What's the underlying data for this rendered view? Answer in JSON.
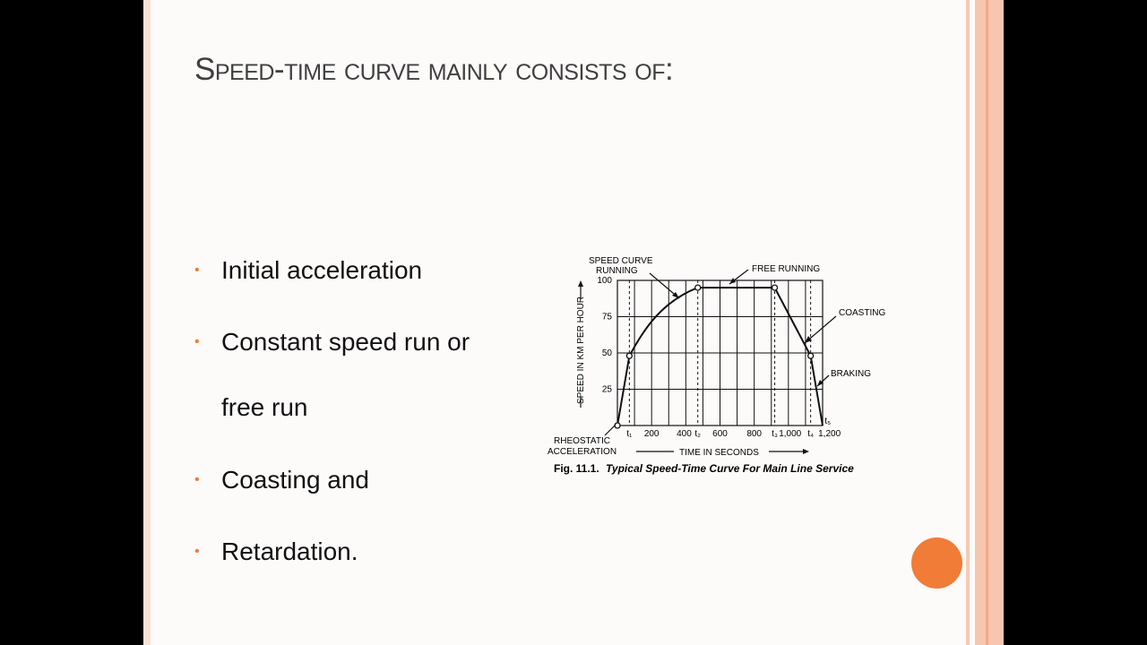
{
  "slide": {
    "title": "Speed-time curve mainly consists of:",
    "accent_color": "#ed7d31",
    "stripe_color": "#f8c9b3",
    "bullets": [
      {
        "line1": "Initial acceleration"
      },
      {
        "line1": "Constant speed run or",
        "line2": "free run"
      },
      {
        "line1": "Coasting and"
      },
      {
        "line1": "Retardation."
      }
    ]
  },
  "chart_data": {
    "type": "line",
    "caption_prefix": "Fig. 11.1.",
    "caption": "Typical Speed-Time Curve For Main Line Service",
    "ylabel": "SPEED IN KM PER HOUR",
    "xlabel": "TIME IN SECONDS",
    "ylim": [
      0,
      100
    ],
    "xlim": [
      0,
      1200
    ],
    "yticks": [
      "25",
      "50",
      "75",
      "100"
    ],
    "xtick_labels": [
      "t₁",
      "200",
      "400",
      "t₂",
      "600",
      "800",
      "t₃",
      "1,000",
      "t₄",
      "1,200",
      "t₅"
    ],
    "grid": true,
    "annotations": {
      "speed_curve": "SPEED CURVE",
      "running": "RUNNING",
      "free_running": "FREE RUNNING",
      "coasting": "COASTING",
      "braking": "BRAKING",
      "rheostatic": "RHEOSTATIC",
      "acceleration": "ACCELERATION"
    },
    "series": [
      {
        "points": [
          {
            "x": 0,
            "y": 0
          },
          {
            "x": 70,
            "y": 48
          },
          {
            "x": 150,
            "y": 65
          },
          {
            "x": 250,
            "y": 80
          },
          {
            "x": 350,
            "y": 90
          },
          {
            "x": 470,
            "y": 95
          },
          {
            "x": 920,
            "y": 95
          },
          {
            "x": 1130,
            "y": 48
          },
          {
            "x": 1200,
            "y": 0
          }
        ]
      }
    ]
  }
}
